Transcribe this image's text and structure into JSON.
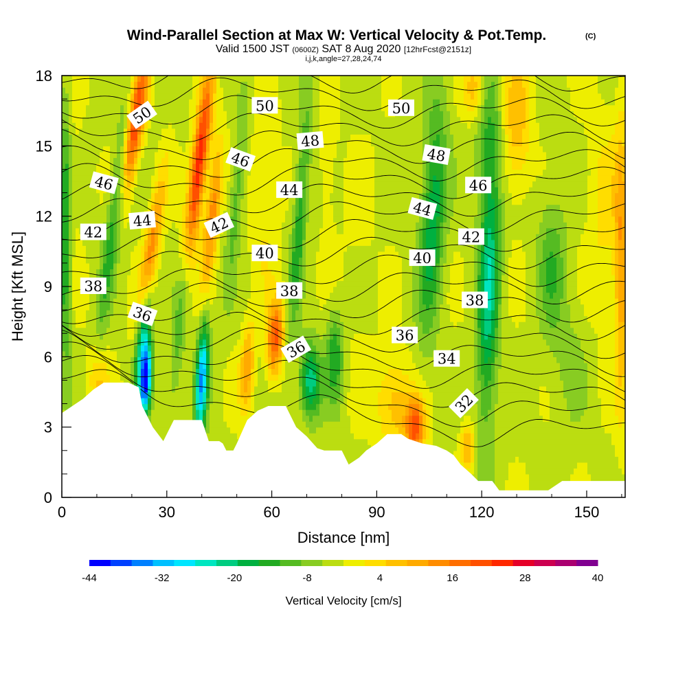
{
  "header": {
    "title": "Wind-Parallel Section at Max W: Vertical Velocity & Pot.Temp.",
    "copyright": "(C)",
    "valid_prefix": "Valid 1500 JST",
    "valid_utc": "(0600Z)",
    "valid_date": "SAT 8 Aug 2020",
    "forecast": "[12hrFcst@2151z]",
    "indices": "i,j,k,angle=27,28,24,74"
  },
  "chart_data": {
    "type": "heatmap",
    "xlabel": "Distance [nm]",
    "ylabel": "Height [Kft MSL]",
    "xlim": [
      0,
      161
    ],
    "ylim": [
      0,
      18
    ],
    "x_ticks": [
      0,
      30,
      60,
      90,
      120,
      150
    ],
    "y_ticks": [
      0,
      3,
      6,
      9,
      12,
      15,
      18
    ],
    "colorbar": {
      "label": "Vertical Velocity [cm/s]",
      "min": -44,
      "max": 40,
      "step": 4,
      "tick_values": [
        -44,
        -32,
        -20,
        -8,
        4,
        16,
        28,
        40
      ],
      "colors": [
        "#0000ff",
        "#0040ff",
        "#0080ff",
        "#00c0ff",
        "#00e6ff",
        "#00e6c0",
        "#00cc80",
        "#00b040",
        "#22aa22",
        "#55bb22",
        "#88cc22",
        "#bbdd11",
        "#eeee00",
        "#ffdd00",
        "#ffc000",
        "#ffaa00",
        "#ff8c00",
        "#ff6e00",
        "#ff5000",
        "#ff2800",
        "#e60028",
        "#cc0050",
        "#aa0070",
        "#800090",
        "#6a00a0"
      ]
    },
    "terrain_kft": [
      [
        0,
        3.6
      ],
      [
        3,
        3.9
      ],
      [
        6,
        4.2
      ],
      [
        9,
        4.6
      ],
      [
        12,
        4.9
      ],
      [
        14,
        4.9
      ],
      [
        19,
        4.9
      ],
      [
        22,
        4.7
      ],
      [
        23,
        3.9
      ],
      [
        26,
        3
      ],
      [
        29,
        2.4
      ],
      [
        32,
        3.3
      ],
      [
        35,
        3.3
      ],
      [
        40,
        3.3
      ],
      [
        42,
        2.4
      ],
      [
        45,
        2.4
      ],
      [
        46,
        2.3
      ],
      [
        47,
        2
      ],
      [
        49,
        2
      ],
      [
        50,
        2.3
      ],
      [
        53,
        3.3
      ],
      [
        56,
        3.7
      ],
      [
        59,
        3.9
      ],
      [
        64,
        3.9
      ],
      [
        67,
        3
      ],
      [
        70,
        2.6
      ],
      [
        73,
        2.1
      ],
      [
        75,
        2
      ],
      [
        80,
        2
      ],
      [
        82,
        1.4
      ],
      [
        85,
        1.7
      ],
      [
        87,
        2
      ],
      [
        90,
        2.3
      ],
      [
        93,
        2.7
      ],
      [
        97,
        2.7
      ],
      [
        99,
        2.5
      ],
      [
        103,
        2.3
      ],
      [
        107,
        2.2
      ],
      [
        110,
        2
      ],
      [
        112,
        1.8
      ],
      [
        114,
        1.4
      ],
      [
        117,
        1
      ],
      [
        119,
        0.7
      ],
      [
        121,
        0.7
      ],
      [
        123,
        0.7
      ],
      [
        124,
        0.5
      ],
      [
        125,
        0.3
      ],
      [
        131,
        0.3
      ],
      [
        136,
        0.3
      ],
      [
        139,
        0.3
      ],
      [
        143,
        0.7
      ],
      [
        150,
        0.7
      ],
      [
        161,
        0.7
      ]
    ],
    "w_features": [
      {
        "x": 1,
        "y": 11,
        "sx": 1.6,
        "sy": 5.5,
        "tilt": 0,
        "w": -16
      },
      {
        "x": 21,
        "y": 16,
        "sx": 2.4,
        "sy": 3,
        "tilt": 0.3,
        "w": 30
      },
      {
        "x": 25,
        "y": 10,
        "sx": 2.2,
        "sy": 3.5,
        "tilt": 0.3,
        "w": 22
      },
      {
        "x": 15,
        "y": 12,
        "sx": 2.2,
        "sy": 5,
        "tilt": 0.25,
        "w": -14
      },
      {
        "x": 23,
        "y": 7,
        "sx": 2,
        "sy": 2.5,
        "tilt": 0.2,
        "w": -28
      },
      {
        "x": 24,
        "y": 5,
        "sx": 1.6,
        "sy": 1.5,
        "tilt": 0.1,
        "w": -42
      },
      {
        "x": 39,
        "y": 14,
        "sx": 2.3,
        "sy": 4.2,
        "tilt": 0.25,
        "w": 34
      },
      {
        "x": 43,
        "y": 12,
        "sx": 2,
        "sy": 3,
        "tilt": 0.2,
        "w": 20
      },
      {
        "x": 40,
        "y": 5,
        "sx": 1.7,
        "sy": 2.5,
        "tilt": 0.1,
        "w": -34
      },
      {
        "x": 34,
        "y": 8,
        "sx": 2,
        "sy": 4,
        "tilt": 0.2,
        "w": -12
      },
      {
        "x": 50,
        "y": 13,
        "sx": 2,
        "sy": 4,
        "tilt": 0.2,
        "w": -10
      },
      {
        "x": 61,
        "y": 6.8,
        "sx": 2.4,
        "sy": 1.6,
        "tilt": 0.1,
        "w": 26
      },
      {
        "x": 53,
        "y": 5.5,
        "sx": 2,
        "sy": 1.8,
        "tilt": 0.1,
        "w": 16
      },
      {
        "x": 58,
        "y": 13,
        "sx": 4,
        "sy": 4,
        "tilt": 0,
        "w": 6
      },
      {
        "x": 68,
        "y": 12,
        "sx": 2,
        "sy": 5,
        "tilt": 0.15,
        "w": -14
      },
      {
        "x": 71,
        "y": 5,
        "sx": 3,
        "sy": 1.6,
        "tilt": 0,
        "w": -22
      },
      {
        "x": 78,
        "y": 6,
        "sx": 2.5,
        "sy": 2,
        "tilt": 0,
        "w": -14
      },
      {
        "x": 76,
        "y": 14,
        "sx": 3,
        "sy": 3,
        "tilt": 0,
        "w": 4
      },
      {
        "x": 85,
        "y": 10,
        "sx": 5,
        "sy": 6,
        "tilt": 0,
        "w": 2
      },
      {
        "x": 101,
        "y": 3,
        "sx": 2.8,
        "sy": 1.2,
        "tilt": 0,
        "w": 26
      },
      {
        "x": 95,
        "y": 4,
        "sx": 5,
        "sy": 2,
        "tilt": 0,
        "w": 12
      },
      {
        "x": 106,
        "y": 12,
        "sx": 3.5,
        "sy": 5,
        "tilt": 0.1,
        "w": -18
      },
      {
        "x": 116,
        "y": 2.2,
        "sx": 2,
        "sy": 1,
        "tilt": 0,
        "w": 14
      },
      {
        "x": 122,
        "y": 9,
        "sx": 3,
        "sy": 6,
        "tilt": 0.05,
        "w": -22
      },
      {
        "x": 121,
        "y": 15.5,
        "sx": 4,
        "sy": 3,
        "tilt": 0,
        "w": -8
      },
      {
        "x": 140,
        "y": 10,
        "sx": 4,
        "sy": 3,
        "tilt": 0,
        "w": -10
      },
      {
        "x": 130,
        "y": 16,
        "sx": 4,
        "sy": 3,
        "tilt": 0,
        "w": 12
      },
      {
        "x": 145,
        "y": 6,
        "sx": 6,
        "sy": 3,
        "tilt": 0,
        "w": -4
      },
      {
        "x": 155,
        "y": 12,
        "sx": 5,
        "sy": 5,
        "tilt": 0,
        "w": 6
      },
      {
        "x": 118,
        "y": 17.5,
        "sx": 3,
        "sy": 1.5,
        "tilt": 0,
        "w": 14
      },
      {
        "x": 160,
        "y": 10,
        "sx": 2,
        "sy": 6,
        "tilt": 0,
        "w": 16
      },
      {
        "x": 10,
        "y": 5,
        "sx": 3,
        "sy": 1.5,
        "tilt": 0,
        "w": 10
      },
      {
        "x": 4,
        "y": 13,
        "sx": 2,
        "sy": 4,
        "tilt": 0,
        "w": 2
      }
    ],
    "theta_contours": {
      "levels": [
        30,
        31,
        32,
        33,
        34,
        35,
        36,
        37,
        38,
        39,
        40,
        41,
        42,
        43,
        44,
        45,
        46,
        47,
        48,
        49,
        50,
        51,
        52
      ],
      "labeled": [
        {
          "text": "50",
          "x": 23,
          "y": 16.3,
          "angle": -35
        },
        {
          "text": "50",
          "x": 58,
          "y": 16.7,
          "angle": 0
        },
        {
          "text": "50",
          "x": 97,
          "y": 16.6,
          "angle": 0
        },
        {
          "text": "48",
          "x": 71,
          "y": 15.2,
          "angle": -5
        },
        {
          "text": "48",
          "x": 107,
          "y": 14.6,
          "angle": 10
        },
        {
          "text": "46",
          "x": 12,
          "y": 13.4,
          "angle": 15
        },
        {
          "text": "46",
          "x": 51,
          "y": 14.4,
          "angle": 20
        },
        {
          "text": "46",
          "x": 119,
          "y": 13.3,
          "angle": 0
        },
        {
          "text": "44",
          "x": 23,
          "y": 11.8,
          "angle": -5
        },
        {
          "text": "44",
          "x": 65,
          "y": 13.1,
          "angle": 0
        },
        {
          "text": "44",
          "x": 103,
          "y": 12.3,
          "angle": 15
        },
        {
          "text": "42",
          "x": 9,
          "y": 11.3,
          "angle": 0
        },
        {
          "text": "42",
          "x": 45,
          "y": 11.6,
          "angle": -25
        },
        {
          "text": "42",
          "x": 117,
          "y": 11.1,
          "angle": 0
        },
        {
          "text": "40",
          "x": 58,
          "y": 10.4,
          "angle": 0
        },
        {
          "text": "40",
          "x": 103,
          "y": 10.2,
          "angle": 0
        },
        {
          "text": "38",
          "x": 9,
          "y": 9,
          "angle": 0
        },
        {
          "text": "38",
          "x": 65,
          "y": 8.8,
          "angle": 0
        },
        {
          "text": "38",
          "x": 118,
          "y": 8.4,
          "angle": 0
        },
        {
          "text": "36",
          "x": 23,
          "y": 7.8,
          "angle": 20
        },
        {
          "text": "36",
          "x": 67,
          "y": 6.3,
          "angle": -30
        },
        {
          "text": "36",
          "x": 98,
          "y": 6.9,
          "angle": 0
        },
        {
          "text": "34",
          "x": 110,
          "y": 5.9,
          "angle": 0
        },
        {
          "text": "32",
          "x": 115,
          "y": 4,
          "angle": -45
        }
      ]
    }
  }
}
